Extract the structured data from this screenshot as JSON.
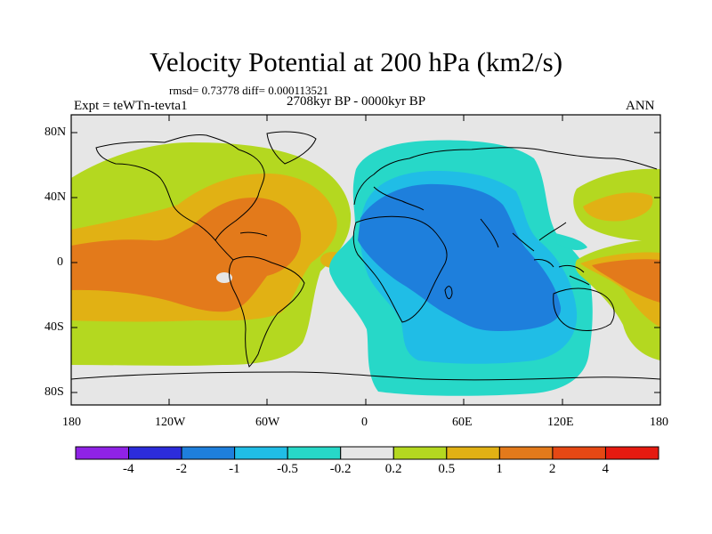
{
  "map": {
    "title": "Velocity Potential at 200 hPa (km2/s)",
    "stats_text": "rmsd= 0.73778 diff= 0.000113521",
    "period_text": "2708kyr BP - 0000kyr BP",
    "experiment_text": "Expt = teWTn-tevta1",
    "season_text": "ANN",
    "lat_ticks": [
      "80N",
      "40N",
      "0",
      "40S",
      "80S"
    ],
    "lon_ticks": [
      "180",
      "120W",
      "60W",
      "0",
      "60E",
      "120E",
      "180"
    ],
    "colors": {
      "land_outline": "#000000",
      "frame": "#000000",
      "neutral_fill": "#e6e6e6"
    }
  },
  "colorbar": {
    "levels": [
      "-4",
      "-2",
      "-1",
      "-0.5",
      "-0.2",
      "0.2",
      "0.5",
      "1",
      "2",
      "4"
    ],
    "colors": [
      "#8f22e6",
      "#2c2cdb",
      "#1e7fdc",
      "#20bde6",
      "#27d8c8",
      "#e6e6e6",
      "#b4d820",
      "#e1b114",
      "#e37a1b",
      "#e64814",
      "#e61a10"
    ]
  }
}
